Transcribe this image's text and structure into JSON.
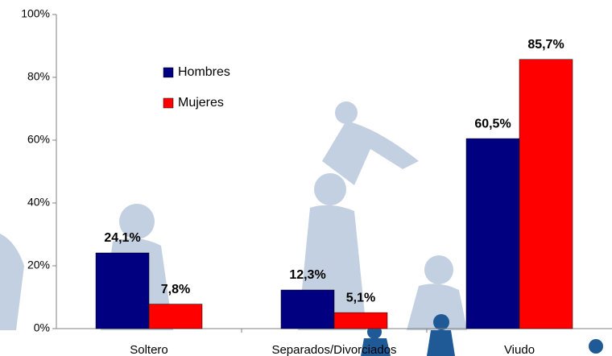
{
  "chart_data": {
    "type": "bar",
    "categories": [
      "Soltero",
      "Separados/Divorciados",
      "Viudo"
    ],
    "series": [
      {
        "name": "Hombres",
        "color": "#000080",
        "values": [
          24.1,
          12.3,
          60.5
        ],
        "value_labels": [
          "24,1%",
          "12,3%",
          "60,5%"
        ]
      },
      {
        "name": "Mujeres",
        "color": "#ff0000",
        "values": [
          7.8,
          5.1,
          85.7
        ],
        "value_labels": [
          "7,8%",
          "5,1%",
          "85,7%"
        ]
      }
    ],
    "ylim": [
      0,
      100
    ],
    "yticks": [
      {
        "value": 0,
        "label": "0%"
      },
      {
        "value": 20,
        "label": "20%"
      },
      {
        "value": 40,
        "label": "40%"
      },
      {
        "value": 60,
        "label": "60%"
      },
      {
        "value": 80,
        "label": "80%"
      },
      {
        "value": 100,
        "label": "100%"
      }
    ],
    "legend": "upper-left"
  }
}
